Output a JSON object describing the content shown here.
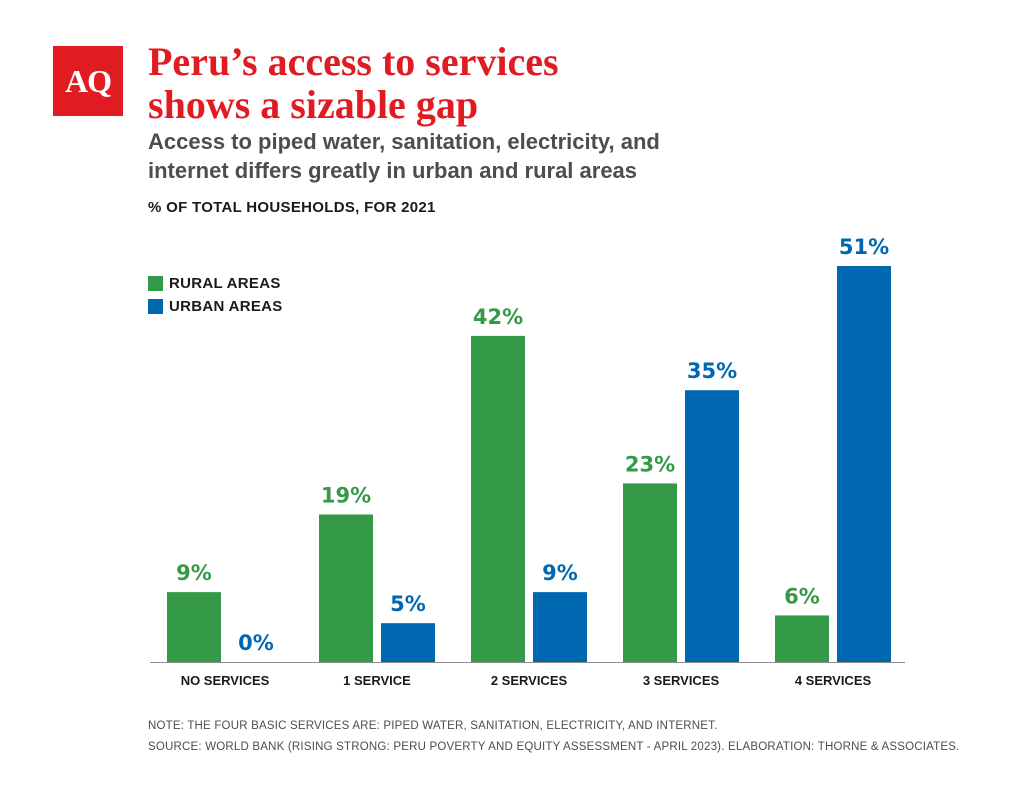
{
  "logo": {
    "text": "AQ"
  },
  "header": {
    "title_line1": "Peru’s access to services",
    "title_line2": "shows a sizable gap",
    "subtitle_line1": "Access to piped water, sanitation, electricity, and",
    "subtitle_line2": "internet differs greatly in urban and rural areas",
    "unit_label": "% OF TOTAL HOUSEHOLDS, FOR 2021"
  },
  "colors": {
    "rural": "#349a47",
    "urban": "#0067b1",
    "brand": "#e11b22",
    "axis": "#8c8c8c"
  },
  "chart_data": {
    "type": "bar",
    "title": "Peru’s access to services shows a sizable gap",
    "categories": [
      "NO SERVICES",
      "1 SERVICE",
      "2 SERVICES",
      "3 SERVICES",
      "4 SERVICES"
    ],
    "series": [
      {
        "name": "RURAL AREAS",
        "values": [
          9,
          19,
          42,
          23,
          6
        ],
        "labels": [
          "9%",
          "19%",
          "42%",
          "23%",
          "6%"
        ]
      },
      {
        "name": "URBAN AREAS",
        "values": [
          0,
          5,
          9,
          35,
          51
        ],
        "labels": [
          "0%",
          "5%",
          "9%",
          "35%",
          "51%"
        ]
      }
    ],
    "xlabel": "",
    "ylabel": "",
    "ylim": [
      0,
      51
    ],
    "grid": false,
    "legend_position": "top-left"
  },
  "footer": {
    "note": "NOTE: THE FOUR BASIC SERVICES ARE: PIPED WATER, SANITATION, ELECTRICITY, AND INTERNET.",
    "source": "SOURCE: WORLD BANK (RISING STRONG: PERU POVERTY AND EQUITY ASSESSMENT - APRIL 2023). ELABORATION: THORNE & ASSOCIATES."
  }
}
